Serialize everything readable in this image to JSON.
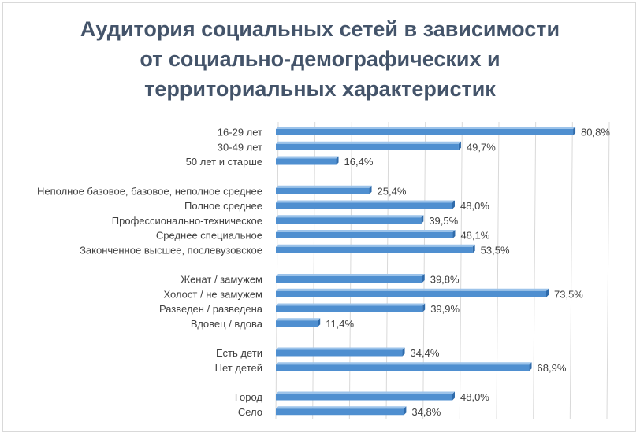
{
  "chart_data": {
    "type": "bar",
    "orientation": "horizontal",
    "title_lines": [
      "Аудитория социальных сетей в зависимости",
      "от социально-демографических  и",
      "территориальных характеристик"
    ],
    "groups": [
      {
        "categories": [
          "16-29 лет",
          "30-49 лет",
          "50 лет и старше"
        ],
        "values": [
          80.8,
          49.7,
          16.4
        ],
        "labels": [
          "80,8%",
          "49,7%",
          "16,4%"
        ]
      },
      {
        "categories": [
          "Неполное базовое, базовое, неполное среднее",
          "Полное среднее",
          "Профессионально-техническое",
          "Среднее специальное",
          "Законченное высшее, послевузовское"
        ],
        "values": [
          25.4,
          48.0,
          39.5,
          48.1,
          53.5
        ],
        "labels": [
          "25,4%",
          "48,0%",
          "39,5%",
          "48,1%",
          "53,5%"
        ]
      },
      {
        "categories": [
          "Женат / замужем",
          "Холост / не замужем",
          "Разведен / разведена",
          "Вдовец / вдова"
        ],
        "values": [
          39.8,
          73.5,
          39.9,
          11.4
        ],
        "labels": [
          "39,8%",
          "73,5%",
          "39,9%",
          "11,4%"
        ]
      },
      {
        "categories": [
          "Есть дети",
          "Нет детей"
        ],
        "values": [
          34.4,
          68.9
        ],
        "labels": [
          "34,4%",
          "68,9%"
        ]
      },
      {
        "categories": [
          "Город",
          "Село"
        ],
        "values": [
          48.0,
          34.8
        ],
        "labels": [
          "48,0%",
          "34,8%"
        ]
      }
    ],
    "xlim": [
      0,
      90
    ],
    "grid": true,
    "bar_style": "3d",
    "colors": {
      "bar_front": "#4f8fd0",
      "bar_top": "#9cc3ea",
      "bar_side": "#2f6bab",
      "grid": "#d9d9d9",
      "title": "#44546a",
      "text": "#404040"
    }
  }
}
